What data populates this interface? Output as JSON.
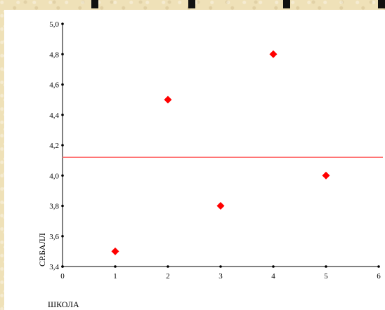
{
  "chart_data": {
    "type": "scatter",
    "xlabel": "ШКОЛА",
    "ylabel": "СР.БАЛЛ",
    "xlim": [
      0,
      6
    ],
    "ylim": [
      3.4,
      5.0
    ],
    "x_ticks": [
      "0",
      "1",
      "2",
      "3",
      "4",
      "5",
      "6"
    ],
    "y_ticks": [
      "3,4",
      "3,6",
      "3,8",
      "4,0",
      "4,2",
      "4,4",
      "4,6",
      "4,8",
      "5,0"
    ],
    "points": [
      {
        "x": 1,
        "y": 3.5
      },
      {
        "x": 2,
        "y": 4.5
      },
      {
        "x": 3,
        "y": 3.8
      },
      {
        "x": 4,
        "y": 4.8
      },
      {
        "x": 5,
        "y": 4.0
      }
    ],
    "reference_line": {
      "y": 4.12
    },
    "grid": false,
    "colors": {
      "points": "#ff0000",
      "reference_line": "#ff6b6b",
      "axes": "#000000",
      "background": "#efe1b8"
    }
  }
}
